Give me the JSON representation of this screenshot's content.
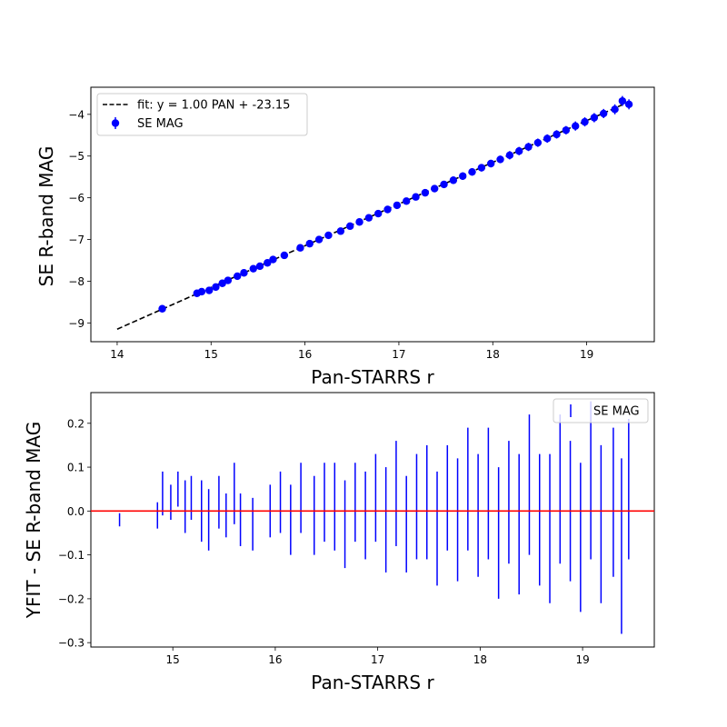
{
  "chart_data": [
    {
      "type": "scatter",
      "xlabel": "Pan-STARRS r",
      "ylabel": "SE R-band MAG",
      "xlim": [
        13.72,
        19.72
      ],
      "ylim": [
        -9.45,
        -3.35
      ],
      "xticks": [
        14,
        15,
        16,
        17,
        18,
        19
      ],
      "yticks": [
        -9,
        -8,
        -7,
        -6,
        -5,
        -4
      ],
      "legend_position": "top-left",
      "fit": {
        "label": "fit: y = 1.00 PAN + -23.15",
        "slope": 1.0,
        "intercept": -23.15,
        "x_range": [
          14.0,
          19.45
        ],
        "style": "dashed",
        "color": "#000000"
      },
      "series": [
        {
          "name": "SE MAG",
          "color": "#0000ff",
          "x": [
            14.48,
            14.85,
            14.9,
            14.98,
            15.05,
            15.12,
            15.18,
            15.28,
            15.35,
            15.45,
            15.52,
            15.6,
            15.66,
            15.78,
            15.95,
            16.05,
            16.15,
            16.25,
            16.38,
            16.48,
            16.58,
            16.68,
            16.78,
            16.88,
            16.98,
            17.08,
            17.18,
            17.28,
            17.38,
            17.48,
            17.58,
            17.68,
            17.78,
            17.88,
            17.98,
            18.08,
            18.18,
            18.28,
            18.38,
            18.48,
            18.58,
            18.68,
            18.78,
            18.88,
            18.98,
            19.08,
            19.18,
            19.3,
            19.38,
            19.45
          ],
          "y": [
            -8.66,
            -8.29,
            -8.25,
            -8.22,
            -8.14,
            -8.05,
            -7.98,
            -7.88,
            -7.8,
            -7.7,
            -7.64,
            -7.56,
            -7.48,
            -7.38,
            -7.2,
            -7.1,
            -7.0,
            -6.9,
            -6.8,
            -6.68,
            -6.58,
            -6.48,
            -6.38,
            -6.28,
            -6.18,
            -6.08,
            -5.98,
            -5.88,
            -5.78,
            -5.68,
            -5.58,
            -5.48,
            -5.38,
            -5.28,
            -5.18,
            -5.08,
            -4.98,
            -4.88,
            -4.78,
            -4.68,
            -4.58,
            -4.48,
            -4.38,
            -4.28,
            -4.18,
            -4.08,
            -3.98,
            -3.88,
            -3.68,
            -3.76
          ],
          "yerr": [
            0.03,
            0.03,
            0.03,
            0.03,
            0.04,
            0.04,
            0.04,
            0.04,
            0.04,
            0.05,
            0.05,
            0.05,
            0.05,
            0.05,
            0.06,
            0.06,
            0.06,
            0.06,
            0.07,
            0.07,
            0.07,
            0.07,
            0.07,
            0.07,
            0.08,
            0.08,
            0.08,
            0.08,
            0.08,
            0.08,
            0.09,
            0.09,
            0.09,
            0.09,
            0.09,
            0.09,
            0.1,
            0.1,
            0.1,
            0.1,
            0.1,
            0.1,
            0.1,
            0.11,
            0.11,
            0.11,
            0.11,
            0.12,
            0.12,
            0.12
          ]
        }
      ]
    },
    {
      "type": "scatter",
      "xlabel": "Pan-STARRS r",
      "ylabel": "YFIT - SE R-band MAG",
      "xlim": [
        14.2,
        19.7
      ],
      "ylim": [
        -0.31,
        0.27
      ],
      "xticks": [
        15,
        16,
        17,
        18,
        19
      ],
      "yticks": [
        -0.3,
        -0.2,
        -0.1,
        0.0,
        0.1,
        0.2
      ],
      "legend_position": "top-right",
      "reference_line": {
        "y": 0.0,
        "color": "#ff0000"
      },
      "series": [
        {
          "name": "SE MAG",
          "color": "#0000ff",
          "x": [
            14.48,
            14.85,
            14.9,
            14.98,
            15.05,
            15.12,
            15.18,
            15.28,
            15.35,
            15.45,
            15.52,
            15.6,
            15.66,
            15.78,
            15.95,
            16.05,
            16.15,
            16.25,
            16.38,
            16.48,
            16.58,
            16.68,
            16.78,
            16.88,
            16.98,
            17.08,
            17.18,
            17.28,
            17.38,
            17.48,
            17.58,
            17.68,
            17.78,
            17.88,
            17.98,
            18.08,
            18.18,
            18.28,
            18.38,
            18.48,
            18.58,
            18.68,
            18.78,
            18.88,
            18.98,
            19.08,
            19.18,
            19.3,
            19.38,
            19.45
          ],
          "y": [
            -0.02,
            -0.01,
            0.04,
            0.02,
            0.05,
            0.01,
            0.03,
            0.0,
            -0.02,
            0.02,
            -0.01,
            0.04,
            -0.02,
            -0.03,
            0.0,
            0.02,
            -0.02,
            0.03,
            -0.01,
            0.02,
            0.01,
            -0.03,
            0.02,
            -0.01,
            0.03,
            -0.02,
            0.04,
            -0.03,
            0.01,
            0.02,
            -0.04,
            0.03,
            -0.02,
            0.05,
            -0.01,
            0.04,
            -0.05,
            0.02,
            -0.03,
            0.06,
            -0.02,
            -0.04,
            0.05,
            0.0,
            -0.06,
            0.07,
            -0.03,
            0.02,
            -0.08,
            0.05
          ],
          "yerr": [
            0.015,
            0.03,
            0.05,
            0.04,
            0.04,
            0.06,
            0.05,
            0.07,
            0.07,
            0.06,
            0.05,
            0.07,
            0.06,
            0.06,
            0.06,
            0.07,
            0.08,
            0.08,
            0.09,
            0.09,
            0.1,
            0.1,
            0.09,
            0.1,
            0.1,
            0.12,
            0.12,
            0.11,
            0.12,
            0.13,
            0.13,
            0.12,
            0.14,
            0.14,
            0.14,
            0.15,
            0.15,
            0.14,
            0.16,
            0.16,
            0.15,
            0.17,
            0.17,
            0.16,
            0.17,
            0.18,
            0.18,
            0.17,
            0.2,
            0.16
          ]
        }
      ]
    }
  ]
}
